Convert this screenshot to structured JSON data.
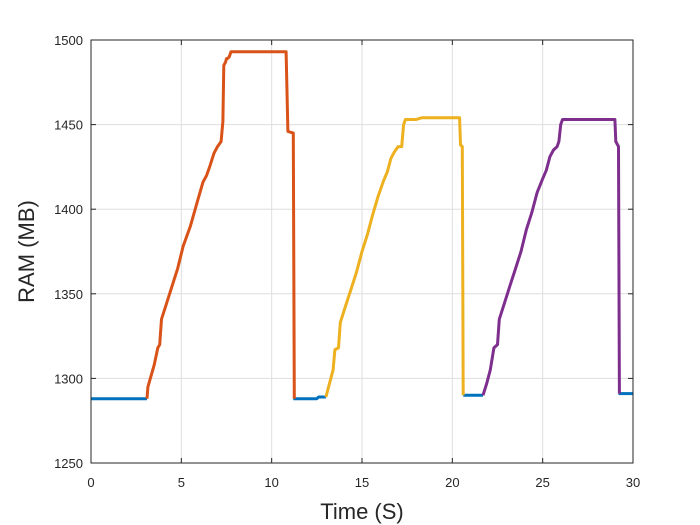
{
  "chart_data": {
    "type": "line",
    "title": "",
    "xlabel": "Time (S)",
    "ylabel": "RAM (MB)",
    "xlim": [
      0,
      30
    ],
    "ylim": [
      1250,
      1500
    ],
    "xticks": [
      0,
      5,
      10,
      15,
      20,
      25,
      30
    ],
    "yticks": [
      1250,
      1300,
      1350,
      1400,
      1450,
      1500
    ],
    "grid": true,
    "legend": "none",
    "series": [
      {
        "color": "#0072BD",
        "segments": [
          [
            [
              0,
              1288
            ],
            [
              3.1,
              1288
            ]
          ],
          [
            [
              11.2,
              1288
            ],
            [
              12.5,
              1288
            ],
            [
              12.6,
              1289
            ],
            [
              13.0,
              1289
            ]
          ],
          [
            [
              20.6,
              1290
            ],
            [
              21.7,
              1290
            ]
          ],
          [
            [
              29.2,
              1291
            ],
            [
              30,
              1291
            ]
          ]
        ]
      },
      {
        "color": "#D95319",
        "values": [
          [
            3.1,
            1288
          ],
          [
            3.15,
            1295
          ],
          [
            3.5,
            1308
          ],
          [
            3.7,
            1318
          ],
          [
            3.8,
            1320
          ],
          [
            3.9,
            1335
          ],
          [
            4.2,
            1345
          ],
          [
            4.5,
            1355
          ],
          [
            4.8,
            1365
          ],
          [
            5.1,
            1378
          ],
          [
            5.5,
            1390
          ],
          [
            5.9,
            1405
          ],
          [
            6.2,
            1416
          ],
          [
            6.4,
            1420
          ],
          [
            6.6,
            1426
          ],
          [
            6.8,
            1433
          ],
          [
            7.0,
            1437
          ],
          [
            7.2,
            1440
          ],
          [
            7.3,
            1452
          ],
          [
            7.35,
            1485
          ],
          [
            7.45,
            1487
          ],
          [
            7.5,
            1489
          ],
          [
            7.55,
            1489
          ],
          [
            7.65,
            1490
          ],
          [
            7.75,
            1493
          ],
          [
            10.8,
            1493
          ],
          [
            10.9,
            1446
          ],
          [
            11.2,
            1445
          ],
          [
            11.25,
            1288
          ]
        ]
      },
      {
        "color": "#EDB120",
        "values": [
          [
            13.0,
            1289
          ],
          [
            13.15,
            1295
          ],
          [
            13.4,
            1305
          ],
          [
            13.5,
            1317
          ],
          [
            13.7,
            1318
          ],
          [
            13.8,
            1333
          ],
          [
            14.1,
            1343
          ],
          [
            14.4,
            1353
          ],
          [
            14.7,
            1363
          ],
          [
            15.0,
            1375
          ],
          [
            15.3,
            1385
          ],
          [
            15.6,
            1397
          ],
          [
            15.9,
            1408
          ],
          [
            16.2,
            1417
          ],
          [
            16.4,
            1422
          ],
          [
            16.6,
            1430
          ],
          [
            16.8,
            1434
          ],
          [
            17.0,
            1437
          ],
          [
            17.2,
            1437
          ],
          [
            17.3,
            1450
          ],
          [
            17.4,
            1453
          ],
          [
            18.0,
            1453
          ],
          [
            18.3,
            1454
          ],
          [
            20.4,
            1454
          ],
          [
            20.45,
            1438
          ],
          [
            20.55,
            1437
          ],
          [
            20.6,
            1290
          ]
        ]
      },
      {
        "color": "#7E2F8E",
        "values": [
          [
            21.7,
            1290
          ],
          [
            21.9,
            1297
          ],
          [
            22.1,
            1305
          ],
          [
            22.3,
            1318
          ],
          [
            22.5,
            1320
          ],
          [
            22.6,
            1335
          ],
          [
            22.9,
            1345
          ],
          [
            23.2,
            1355
          ],
          [
            23.5,
            1365
          ],
          [
            23.8,
            1375
          ],
          [
            24.1,
            1388
          ],
          [
            24.4,
            1398
          ],
          [
            24.7,
            1410
          ],
          [
            25.0,
            1418
          ],
          [
            25.2,
            1423
          ],
          [
            25.4,
            1431
          ],
          [
            25.6,
            1435
          ],
          [
            25.8,
            1437
          ],
          [
            25.9,
            1440
          ],
          [
            26.0,
            1450
          ],
          [
            26.1,
            1453
          ],
          [
            29.0,
            1453
          ],
          [
            29.05,
            1440
          ],
          [
            29.2,
            1437
          ],
          [
            29.25,
            1291
          ]
        ]
      }
    ]
  }
}
